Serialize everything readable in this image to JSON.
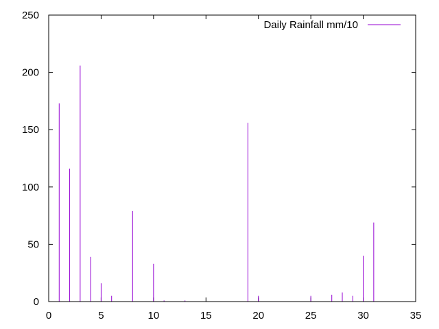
{
  "chart_data": {
    "type": "bar",
    "style": "impulses",
    "title": "",
    "xlabel": "",
    "ylabel": "",
    "xlim": [
      0,
      35
    ],
    "ylim": [
      0,
      250
    ],
    "xticks": [
      0,
      5,
      10,
      15,
      20,
      25,
      30,
      35
    ],
    "yticks": [
      0,
      50,
      100,
      150,
      200,
      250
    ],
    "grid": false,
    "legend_position": "top-right",
    "series": [
      {
        "name": "Daily Rainfall mm/10",
        "color": "#9400d3",
        "x": [
          1,
          2,
          3,
          4,
          5,
          6,
          8,
          10,
          11,
          13,
          19,
          20,
          25,
          27,
          28,
          29,
          30,
          31
        ],
        "values": [
          173,
          116,
          206,
          39,
          16,
          5,
          79,
          33,
          1,
          1,
          156,
          5,
          5,
          6,
          8,
          5,
          40,
          69
        ]
      }
    ]
  }
}
